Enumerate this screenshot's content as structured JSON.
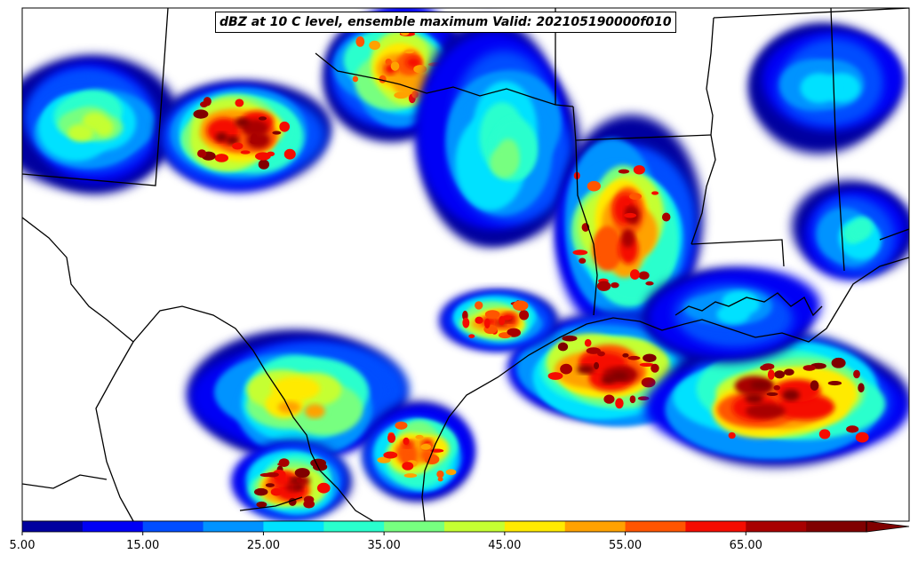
{
  "title": "dBZ at 10 C level, ensemble maximum Valid: 202105190000f010",
  "colorbar": {
    "min": 5,
    "max": 70,
    "step": 5,
    "extend": "max",
    "tick_labels": [
      "5.00",
      "15.00",
      "25.00",
      "35.00",
      "45.00",
      "55.00",
      "65.00"
    ],
    "colors": [
      "#00009f",
      "#0000f5",
      "#004dff",
      "#0093ff",
      "#00e1ff",
      "#29ffcd",
      "#77ff80",
      "#c5ff32",
      "#ffea00",
      "#ffa200",
      "#ff5500",
      "#f50c00",
      "#a80000",
      "#800000"
    ]
  },
  "map": {
    "field": "reflectivity",
    "units": "dBZ",
    "background": "#ffffff",
    "boundary_color": "#000000"
  }
}
